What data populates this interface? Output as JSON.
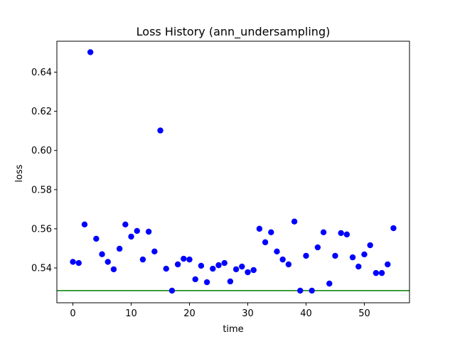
{
  "chart_data": {
    "type": "scatter",
    "title": "Loss History (ann_undersampling)",
    "xlabel": "time",
    "ylabel": "loss",
    "xlim": [
      -2.75,
      57.75
    ],
    "ylim": [
      0.5222,
      0.6558
    ],
    "xticks": [
      0,
      10,
      20,
      30,
      40,
      50
    ],
    "xtick_labels": [
      "0",
      "10",
      "20",
      "30",
      "40",
      "50"
    ],
    "yticks": [
      0.54,
      0.56,
      0.58,
      0.6,
      0.62,
      0.64
    ],
    "ytick_labels": [
      "0.54",
      "0.56",
      "0.58",
      "0.60",
      "0.62",
      "0.64"
    ],
    "grid": false,
    "series": [
      {
        "marker": "circle",
        "color": "#0000ff",
        "x": [
          0,
          1,
          2,
          3,
          4,
          5,
          6,
          7,
          8,
          9,
          10,
          11,
          12,
          13,
          14,
          15,
          16,
          17,
          18,
          19,
          20,
          21,
          22,
          23,
          24,
          25,
          26,
          27,
          28,
          29,
          30,
          31,
          32,
          33,
          34,
          35,
          36,
          37,
          38,
          39,
          40,
          41,
          42,
          43,
          44,
          45,
          46,
          47,
          48,
          49,
          50,
          51,
          52,
          53,
          54,
          55
        ],
        "y": [
          0.5431,
          0.5425,
          0.5622,
          0.6502,
          0.5549,
          0.547,
          0.5431,
          0.5393,
          0.5498,
          0.5622,
          0.556,
          0.5589,
          0.5443,
          0.5585,
          0.5484,
          0.6102,
          0.5396,
          0.5284,
          0.5418,
          0.5447,
          0.5443,
          0.5342,
          0.5411,
          0.5327,
          0.5396,
          0.5414,
          0.5425,
          0.5331,
          0.5393,
          0.5407,
          0.5378,
          0.5389,
          0.56,
          0.5531,
          0.5582,
          0.5484,
          0.5443,
          0.5418,
          0.5637,
          0.5284,
          0.5462,
          0.5284,
          0.5505,
          0.5582,
          0.532,
          0.5462,
          0.5578,
          0.5571,
          0.5454,
          0.5407,
          0.5469,
          0.5516,
          0.5374,
          0.5374,
          0.5418,
          0.5603
        ]
      }
    ],
    "reference_line": {
      "orientation": "horizontal",
      "y": 0.5284,
      "color": "#008000"
    }
  }
}
